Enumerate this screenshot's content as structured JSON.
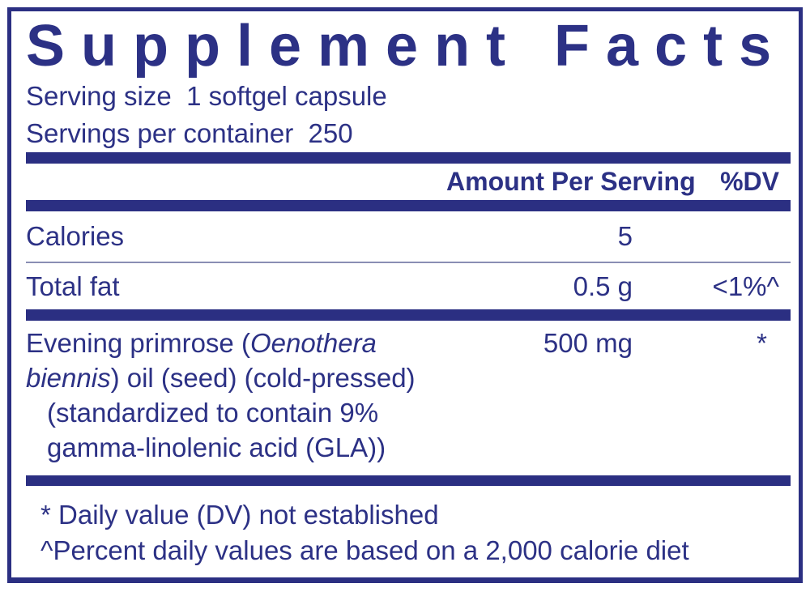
{
  "label": {
    "title": "Supplement Facts",
    "serving_size_line": "Serving size  1 softgel capsule",
    "servings_per_container_line": "Servings per container  250",
    "columns": {
      "amount_header": "Amount Per Serving",
      "dv_header": "%DV"
    },
    "rows": [
      {
        "name": "Calories",
        "amount": "5",
        "dv": ""
      },
      {
        "name": "Total fat",
        "amount": "0.5 g",
        "dv": "<1%^"
      }
    ],
    "ingredient": {
      "line1_regular": "Evening primrose (",
      "line1_italic": "Oenothera",
      "line2_italic": "biennis",
      "line2_regular": ") oil (seed) (cold-pressed)",
      "line3": "(standardized to contain 9%",
      "line4": "gamma-linolenic acid (GLA))",
      "amount": "500 mg",
      "dv": "*"
    },
    "footnotes": [
      "* Daily value (DV) not established",
      "^Percent daily values are based on a 2,000 calorie diet"
    ],
    "colors": {
      "navy": "#2b2f82",
      "text": "#2c3185",
      "divider": "#8a8eb4",
      "bg": "#ffffff"
    }
  }
}
